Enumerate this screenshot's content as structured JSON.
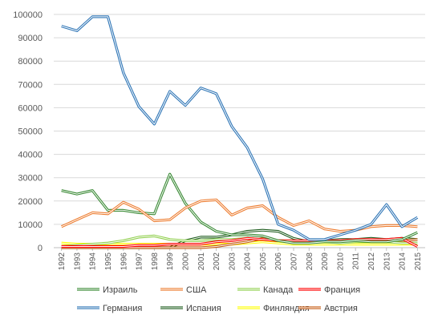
{
  "chart_data": {
    "type": "line",
    "title": "",
    "xlabel": "",
    "ylabel": "",
    "ylim": [
      0,
      100000
    ],
    "yticks": [
      0,
      10000,
      20000,
      30000,
      40000,
      50000,
      60000,
      70000,
      80000,
      90000,
      100000
    ],
    "grid": true,
    "legend_position": "bottom",
    "categories": [
      "1992",
      "1993",
      "1994",
      "1995",
      "1996",
      "1997",
      "1998",
      "1999",
      "2000",
      "2001",
      "2002",
      "2003",
      "2004",
      "2005",
      "2006",
      "2007",
      "2008",
      "2009",
      "2010",
      "2011",
      "2012",
      "2013",
      "2014",
      "2015"
    ],
    "series": [
      {
        "name": "Израиль",
        "color": "#3a8a35",
        "values": [
          24500,
          23000,
          24500,
          16000,
          16000,
          15000,
          14500,
          31500,
          19000,
          11000,
          7000,
          5500,
          5500,
          5000,
          3000,
          2000,
          2000,
          2500,
          2500,
          3000,
          2500,
          2500,
          3500,
          6500
        ]
      },
      {
        "name": "США",
        "color": "#ed7d31",
        "values": [
          9000,
          12000,
          15000,
          14500,
          19500,
          16500,
          11500,
          12000,
          17000,
          20000,
          20500,
          14000,
          17000,
          18000,
          13000,
          9500,
          11500,
          8000,
          7000,
          7500,
          9000,
          9500,
          9500,
          9000
        ]
      },
      {
        "name": "Канада",
        "color": "#92d050",
        "values": [
          500,
          1000,
          1500,
          2000,
          3000,
          4500,
          5000,
          3500,
          3000,
          3000,
          3500,
          3500,
          4000,
          3500,
          3000,
          3000,
          2500,
          2500,
          2000,
          2500,
          2500,
          2500,
          2000,
          2000
        ]
      },
      {
        "name": "Франция",
        "color": "#ff0000",
        "values": [
          500,
          500,
          500,
          500,
          500,
          1000,
          1000,
          1500,
          1500,
          1500,
          2500,
          3000,
          4000,
          3500,
          3000,
          3000,
          3000,
          3000,
          3000,
          3500,
          3500,
          3500,
          4000,
          500
        ]
      },
      {
        "name": "Германия",
        "color": "#2e75b6",
        "values": [
          95000,
          93000,
          99000,
          99000,
          75000,
          60500,
          53000,
          67000,
          61000,
          68500,
          66000,
          52000,
          43000,
          29500,
          10000,
          7500,
          3500,
          3500,
          5500,
          7500,
          10000,
          18500,
          9000,
          13000
        ]
      },
      {
        "name": "Испания",
        "color": "#1e5c1e",
        "values": [
          0,
          0,
          0,
          0,
          0,
          0,
          0,
          0,
          3000,
          4500,
          4500,
          5500,
          7000,
          7500,
          7000,
          4000,
          2500,
          3000,
          3500,
          3500,
          4000,
          3500,
          4000,
          3500
        ]
      },
      {
        "name": "Финляндия",
        "color": "#ffff00",
        "values": [
          2000,
          1500,
          1500,
          1500,
          1500,
          1500,
          1500,
          1500,
          1500,
          1500,
          1500,
          1500,
          2000,
          2500,
          2000,
          1500,
          1500,
          1500,
          1500,
          1500,
          1500,
          1500,
          1500,
          1500
        ]
      },
      {
        "name": "Австрия",
        "color": "#c55a11",
        "values": [
          0,
          0,
          0,
          0,
          0,
          0,
          0,
          0,
          0,
          0,
          500,
          1500,
          2500,
          4000,
          3000,
          2500,
          3000,
          3000,
          2500,
          3500,
          3000,
          3000,
          3000,
          3500
        ]
      }
    ]
  }
}
